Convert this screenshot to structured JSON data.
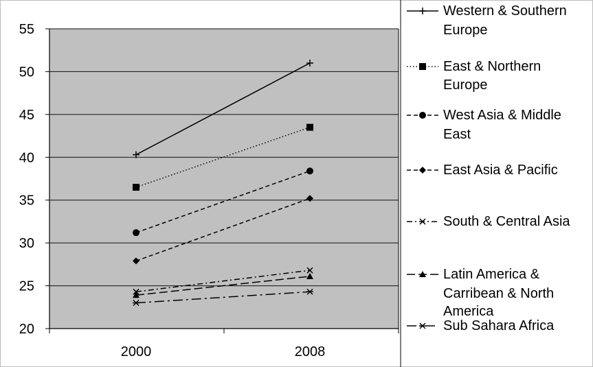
{
  "chart_data": {
    "type": "line",
    "categories": [
      "2000",
      "2008"
    ],
    "ylim": [
      20,
      55
    ],
    "yticks": [
      20,
      25,
      30,
      35,
      40,
      45,
      50,
      55
    ],
    "grid": true,
    "legend_position": "right",
    "colors": {
      "plot_background": "#c0c0c0",
      "gridline": "#111111",
      "series": "#000000"
    },
    "series": [
      {
        "name": "Western & Southern Europe",
        "values": [
          40.3,
          51.0
        ],
        "marker": "plus",
        "dash": "solid"
      },
      {
        "name": "East & Northern Europe",
        "values": [
          36.5,
          43.5
        ],
        "marker": "square",
        "dash": "dotted"
      },
      {
        "name": "West Asia & Middle East",
        "values": [
          31.2,
          38.4
        ],
        "marker": "circle",
        "dash": "dashed"
      },
      {
        "name": "East Asia & Pacific",
        "values": [
          27.9,
          35.2
        ],
        "marker": "diamond",
        "dash": "dashed"
      },
      {
        "name": "South & Central Asia",
        "values": [
          24.3,
          26.8
        ],
        "marker": "x",
        "dash": "dashdot"
      },
      {
        "name": "Latin America & Carribean & North America",
        "values": [
          23.9,
          26.1
        ],
        "marker": "triangle",
        "dash": "longdash"
      },
      {
        "name": "Sub Sahara Africa",
        "values": [
          23.0,
          24.3
        ],
        "marker": "asterisk",
        "dash": "longdashdot"
      }
    ]
  }
}
